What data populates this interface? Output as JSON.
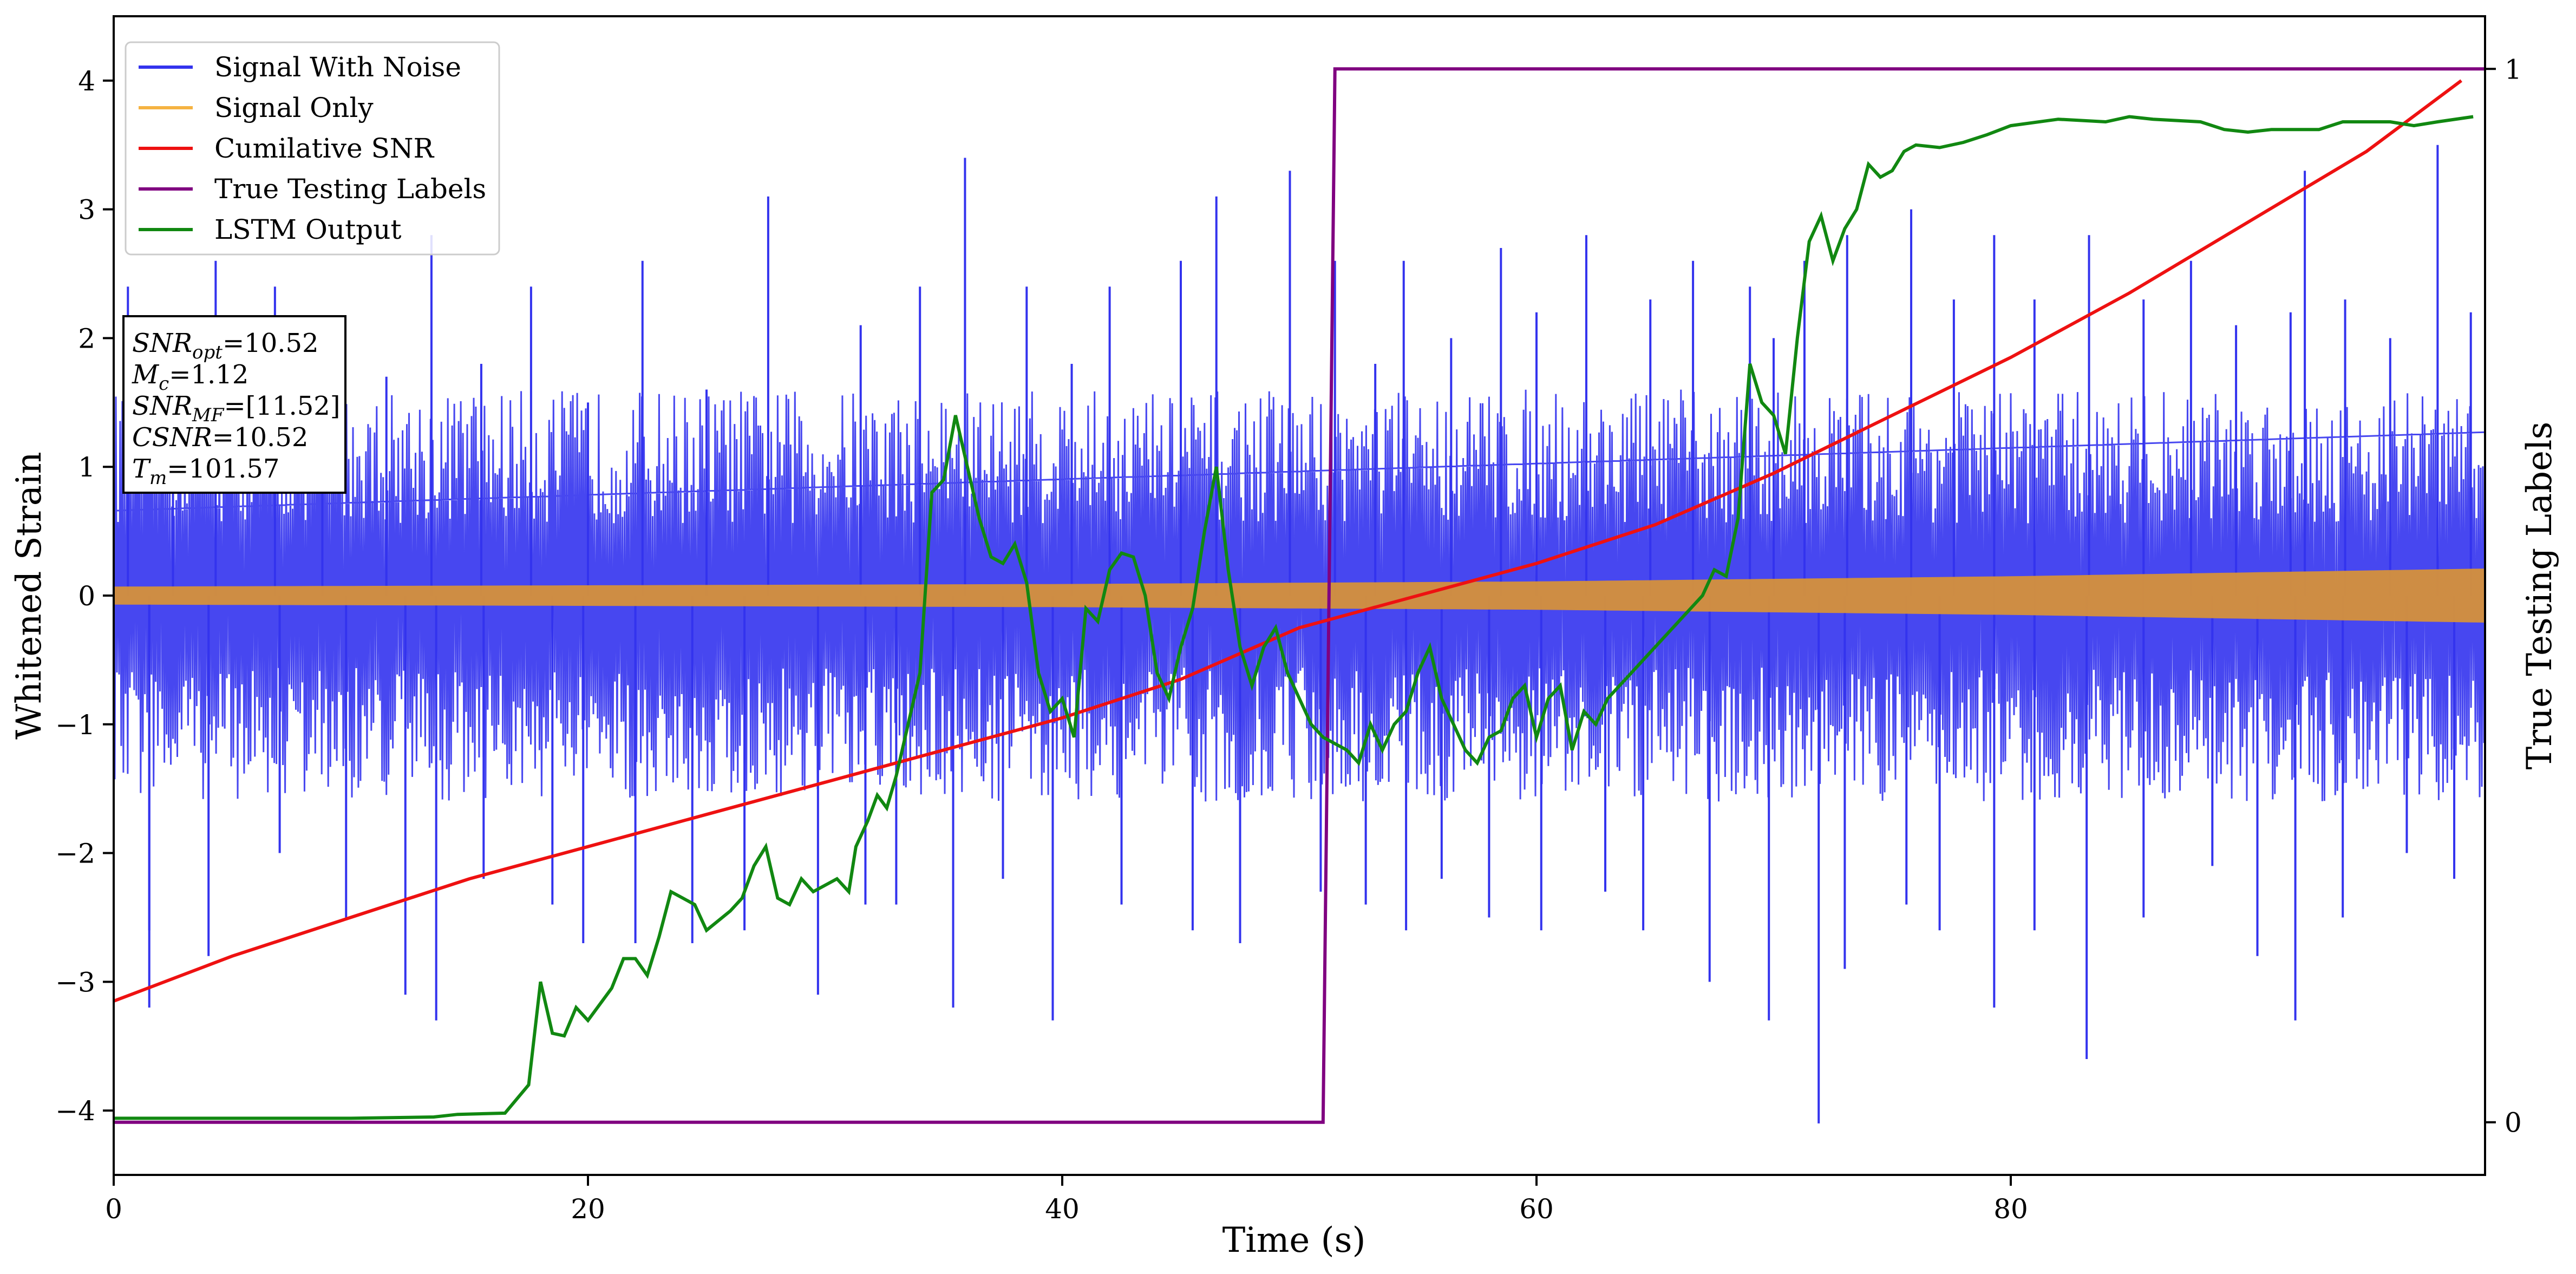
{
  "chart_data": {
    "type": "line",
    "title": "",
    "xlabel": "Time (s)",
    "ylabel": "Whitened Strain",
    "y2label": "True Testing Labels",
    "xlim": [
      0,
      100
    ],
    "ylim": [
      -4.5,
      4.5
    ],
    "y2lim": [
      -0.05,
      1.05
    ],
    "x_ticks": [
      0,
      20,
      40,
      60,
      80
    ],
    "y_ticks": [
      -4,
      -3,
      -2,
      -1,
      0,
      1,
      2,
      3,
      4
    ],
    "y2_ticks": [
      0,
      1
    ],
    "grid": false,
    "legend_position": "top-left",
    "legend": [
      {
        "label": "Signal With Noise",
        "color": "#3333ee"
      },
      {
        "label": "Signal Only",
        "color": "#f5b342"
      },
      {
        "label": "Cumilative SNR",
        "color": "#ee1111"
      },
      {
        "label": "True Testing Labels",
        "color": "#800080"
      },
      {
        "label": "LSTM Output",
        "color": "#118811"
      }
    ],
    "annotation": [
      {
        "base": "SNR",
        "sub": "opt",
        "value": "=10.52"
      },
      {
        "base": "M",
        "sub": "c",
        "value": "=1.12"
      },
      {
        "base": "SNR",
        "sub": "MF",
        "value": "=[11.52]"
      },
      {
        "base": "CSNR",
        "sub": "",
        "value": "=10.52"
      },
      {
        "base": "T",
        "sub": "m",
        "value": "=101.57"
      }
    ],
    "series": [
      {
        "name": "Signal With Noise",
        "kind": "noise_band",
        "color": "#3333ee",
        "typical_envelope": [
          -1.6,
          1.6
        ],
        "x_range": [
          0,
          100
        ],
        "peaks": [
          {
            "x": 0.6,
            "y": 2.4
          },
          {
            "x": 2.5,
            "y": 1.6
          },
          {
            "x": 4.3,
            "y": 2.6
          },
          {
            "x": 6.8,
            "y": 2.4
          },
          {
            "x": 8.8,
            "y": 2.1
          },
          {
            "x": 11.5,
            "y": 1.7
          },
          {
            "x": 13.4,
            "y": 2.8
          },
          {
            "x": 15.5,
            "y": 1.8
          },
          {
            "x": 17.6,
            "y": 2.4
          },
          {
            "x": 20.0,
            "y": 1.5
          },
          {
            "x": 22.3,
            "y": 2.6
          },
          {
            "x": 25.0,
            "y": 1.6
          },
          {
            "x": 27.6,
            "y": 3.1
          },
          {
            "x": 31.5,
            "y": 2.1
          },
          {
            "x": 34.0,
            "y": 2.4
          },
          {
            "x": 35.9,
            "y": 3.4
          },
          {
            "x": 38.5,
            "y": 2.4
          },
          {
            "x": 40.4,
            "y": 1.8
          },
          {
            "x": 42.0,
            "y": 2.4
          },
          {
            "x": 45.0,
            "y": 2.6
          },
          {
            "x": 46.5,
            "y": 3.1
          },
          {
            "x": 49.6,
            "y": 3.3
          },
          {
            "x": 51.5,
            "y": 2.6
          },
          {
            "x": 53.2,
            "y": 1.8
          },
          {
            "x": 54.4,
            "y": 2.6
          },
          {
            "x": 56.4,
            "y": 2.0
          },
          {
            "x": 58.5,
            "y": 2.7
          },
          {
            "x": 60.0,
            "y": 2.2
          },
          {
            "x": 62.1,
            "y": 2.8
          },
          {
            "x": 64.8,
            "y": 2.3
          },
          {
            "x": 66.6,
            "y": 2.6
          },
          {
            "x": 69.0,
            "y": 2.4
          },
          {
            "x": 70.0,
            "y": 2.0
          },
          {
            "x": 71.3,
            "y": 2.6
          },
          {
            "x": 73.1,
            "y": 2.8
          },
          {
            "x": 75.8,
            "y": 3.0
          },
          {
            "x": 77.6,
            "y": 2.3
          },
          {
            "x": 79.3,
            "y": 2.8
          },
          {
            "x": 81.0,
            "y": 2.3
          },
          {
            "x": 83.3,
            "y": 2.8
          },
          {
            "x": 85.6,
            "y": 2.3
          },
          {
            "x": 87.6,
            "y": 2.6
          },
          {
            "x": 89.5,
            "y": 2.1
          },
          {
            "x": 91.8,
            "y": 2.2
          },
          {
            "x": 92.4,
            "y": 3.3
          },
          {
            "x": 94.1,
            "y": 2.3
          },
          {
            "x": 96.0,
            "y": 2.0
          },
          {
            "x": 98.0,
            "y": 3.5
          },
          {
            "x": 99.4,
            "y": 2.2
          }
        ],
        "troughs": [
          {
            "x": 1.5,
            "y": -2.6
          },
          {
            "x": 1.5,
            "y": -3.2
          },
          {
            "x": 4.0,
            "y": -2.8
          },
          {
            "x": 7.0,
            "y": -2.0
          },
          {
            "x": 9.8,
            "y": -2.5
          },
          {
            "x": 12.3,
            "y": -3.1
          },
          {
            "x": 13.6,
            "y": -3.3
          },
          {
            "x": 15.6,
            "y": -2.2
          },
          {
            "x": 18.5,
            "y": -2.4
          },
          {
            "x": 19.8,
            "y": -2.7
          },
          {
            "x": 22.0,
            "y": -2.7
          },
          {
            "x": 24.4,
            "y": -2.7
          },
          {
            "x": 26.6,
            "y": -2.6
          },
          {
            "x": 29.7,
            "y": -3.1
          },
          {
            "x": 31.7,
            "y": -2.4
          },
          {
            "x": 33.0,
            "y": -2.4
          },
          {
            "x": 35.4,
            "y": -3.2
          },
          {
            "x": 37.5,
            "y": -2.2
          },
          {
            "x": 39.6,
            "y": -3.3
          },
          {
            "x": 42.5,
            "y": -2.4
          },
          {
            "x": 45.5,
            "y": -2.6
          },
          {
            "x": 47.5,
            "y": -2.7
          },
          {
            "x": 50.9,
            "y": -2.3
          },
          {
            "x": 52.8,
            "y": -2.4
          },
          {
            "x": 54.5,
            "y": -2.6
          },
          {
            "x": 56.0,
            "y": -2.2
          },
          {
            "x": 58.0,
            "y": -2.5
          },
          {
            "x": 60.2,
            "y": -2.6
          },
          {
            "x": 62.9,
            "y": -2.3
          },
          {
            "x": 64.5,
            "y": -2.6
          },
          {
            "x": 67.3,
            "y": -3.0
          },
          {
            "x": 69.8,
            "y": -3.3
          },
          {
            "x": 71.9,
            "y": -4.1
          },
          {
            "x": 73.0,
            "y": -2.9
          },
          {
            "x": 75.6,
            "y": -2.4
          },
          {
            "x": 77.0,
            "y": -2.6
          },
          {
            "x": 79.3,
            "y": -3.2
          },
          {
            "x": 81.0,
            "y": -2.6
          },
          {
            "x": 83.2,
            "y": -3.6
          },
          {
            "x": 85.6,
            "y": -2.5
          },
          {
            "x": 88.5,
            "y": -2.1
          },
          {
            "x": 90.4,
            "y": -2.8
          },
          {
            "x": 92.0,
            "y": -3.3
          },
          {
            "x": 94.0,
            "y": -2.5
          },
          {
            "x": 96.7,
            "y": -2.0
          },
          {
            "x": 98.7,
            "y": -2.2
          }
        ]
      },
      {
        "name": "Signal Only",
        "kind": "envelope",
        "color": "#f5b342",
        "fill_color": "#d6913a",
        "x": [
          0,
          20,
          40,
          60,
          80,
          100
        ],
        "amplitude": [
          0.07,
          0.08,
          0.09,
          0.11,
          0.15,
          0.21
        ]
      },
      {
        "name": "Cumilative SNR",
        "color": "#ee1111",
        "axis": "left",
        "points": [
          [
            0,
            -3.15
          ],
          [
            5,
            -2.8
          ],
          [
            10,
            -2.5
          ],
          [
            15,
            -2.2
          ],
          [
            20,
            -1.95
          ],
          [
            25,
            -1.7
          ],
          [
            30,
            -1.45
          ],
          [
            35,
            -1.2
          ],
          [
            40,
            -0.95
          ],
          [
            45,
            -0.65
          ],
          [
            50,
            -0.25
          ],
          [
            55,
            0.0
          ],
          [
            60,
            0.25
          ],
          [
            65,
            0.55
          ],
          [
            70,
            0.95
          ],
          [
            75,
            1.4
          ],
          [
            80,
            1.85
          ],
          [
            85,
            2.35
          ],
          [
            90,
            2.9
          ],
          [
            95,
            3.45
          ],
          [
            99,
            4.0
          ]
        ]
      },
      {
        "name": "True Testing Labels",
        "color": "#800080",
        "axis": "right",
        "points": [
          [
            0,
            0
          ],
          [
            51.0,
            0
          ],
          [
            51.5,
            1
          ],
          [
            100,
            1
          ]
        ]
      },
      {
        "name": "LSTM Output",
        "color": "#118811",
        "axis": "left",
        "points": [
          [
            0,
            -4.06
          ],
          [
            10,
            -4.06
          ],
          [
            13.5,
            -4.05
          ],
          [
            14.5,
            -4.03
          ],
          [
            16.5,
            -4.02
          ],
          [
            17.5,
            -3.8
          ],
          [
            18,
            -3.0
          ],
          [
            18.5,
            -3.4
          ],
          [
            19,
            -3.42
          ],
          [
            19.5,
            -3.2
          ],
          [
            20,
            -3.3
          ],
          [
            21,
            -3.05
          ],
          [
            21.5,
            -2.82
          ],
          [
            22,
            -2.82
          ],
          [
            22.5,
            -2.95
          ],
          [
            23,
            -2.65
          ],
          [
            23.5,
            -2.3
          ],
          [
            24,
            -2.35
          ],
          [
            24.5,
            -2.4
          ],
          [
            25,
            -2.6
          ],
          [
            26,
            -2.45
          ],
          [
            26.5,
            -2.35
          ],
          [
            27,
            -2.1
          ],
          [
            27.5,
            -1.95
          ],
          [
            28,
            -2.35
          ],
          [
            28.5,
            -2.4
          ],
          [
            29,
            -2.2
          ],
          [
            29.5,
            -2.3
          ],
          [
            30,
            -2.25
          ],
          [
            30.5,
            -2.2
          ],
          [
            31,
            -2.3
          ],
          [
            31.3,
            -1.95
          ],
          [
            31.8,
            -1.75
          ],
          [
            32.2,
            -1.55
          ],
          [
            32.6,
            -1.65
          ],
          [
            33,
            -1.4
          ],
          [
            33.5,
            -1.0
          ],
          [
            34,
            -0.6
          ],
          [
            34.5,
            0.8
          ],
          [
            35,
            0.9
          ],
          [
            35.5,
            1.4
          ],
          [
            36,
            1.0
          ],
          [
            36.5,
            0.6
          ],
          [
            37,
            0.3
          ],
          [
            37.5,
            0.25
          ],
          [
            38,
            0.4
          ],
          [
            38.5,
            0.1
          ],
          [
            39,
            -0.6
          ],
          [
            39.5,
            -0.9
          ],
          [
            40,
            -0.8
          ],
          [
            40.5,
            -1.1
          ],
          [
            41,
            -0.1
          ],
          [
            41.5,
            -0.2
          ],
          [
            42,
            0.2
          ],
          [
            42.5,
            0.33
          ],
          [
            43,
            0.3
          ],
          [
            43.5,
            0.0
          ],
          [
            44,
            -0.6
          ],
          [
            44.5,
            -0.8
          ],
          [
            45,
            -0.4
          ],
          [
            45.5,
            -0.1
          ],
          [
            46,
            0.5
          ],
          [
            46.5,
            1.0
          ],
          [
            47,
            0.2
          ],
          [
            47.5,
            -0.4
          ],
          [
            48,
            -0.7
          ],
          [
            48.5,
            -0.4
          ],
          [
            49,
            -0.25
          ],
          [
            49.5,
            -0.6
          ],
          [
            50,
            -0.8
          ],
          [
            50.5,
            -1.0
          ],
          [
            51,
            -1.1
          ],
          [
            52,
            -1.2
          ],
          [
            52.5,
            -1.3
          ],
          [
            53,
            -1.0
          ],
          [
            53.5,
            -1.2
          ],
          [
            54,
            -1.0
          ],
          [
            54.5,
            -0.9
          ],
          [
            55,
            -0.6
          ],
          [
            55.5,
            -0.4
          ],
          [
            56,
            -0.8
          ],
          [
            56.5,
            -1.0
          ],
          [
            57,
            -1.2
          ],
          [
            57.5,
            -1.3
          ],
          [
            58,
            -1.1
          ],
          [
            58.5,
            -1.05
          ],
          [
            59,
            -0.8
          ],
          [
            59.5,
            -0.7
          ],
          [
            60,
            -1.1
          ],
          [
            60.5,
            -0.8
          ],
          [
            61,
            -0.7
          ],
          [
            61.5,
            -1.2
          ],
          [
            62,
            -0.9
          ],
          [
            62.5,
            -1.0
          ],
          [
            63,
            -0.8
          ],
          [
            64,
            -0.6
          ],
          [
            65,
            -0.4
          ],
          [
            66,
            -0.2
          ],
          [
            67,
            0.0
          ],
          [
            67.5,
            0.2
          ],
          [
            68,
            0.15
          ],
          [
            68.5,
            0.6
          ],
          [
            69,
            1.8
          ],
          [
            69.5,
            1.5
          ],
          [
            70,
            1.4
          ],
          [
            70.5,
            1.1
          ],
          [
            71,
            2.0
          ],
          [
            71.5,
            2.75
          ],
          [
            72,
            2.95
          ],
          [
            72.5,
            2.6
          ],
          [
            73,
            2.85
          ],
          [
            73.5,
            3.0
          ],
          [
            74,
            3.35
          ],
          [
            74.5,
            3.25
          ],
          [
            75,
            3.3
          ],
          [
            75.5,
            3.45
          ],
          [
            76,
            3.5
          ],
          [
            77,
            3.48
          ],
          [
            78,
            3.52
          ],
          [
            79,
            3.58
          ],
          [
            80,
            3.65
          ],
          [
            82,
            3.7
          ],
          [
            84,
            3.68
          ],
          [
            85,
            3.72
          ],
          [
            86,
            3.7
          ],
          [
            88,
            3.68
          ],
          [
            89,
            3.62
          ],
          [
            90,
            3.6
          ],
          [
            91,
            3.62
          ],
          [
            93,
            3.62
          ],
          [
            94,
            3.68
          ],
          [
            96,
            3.68
          ],
          [
            97,
            3.65
          ],
          [
            98,
            3.68
          ],
          [
            99.5,
            3.72
          ]
        ]
      }
    ]
  }
}
